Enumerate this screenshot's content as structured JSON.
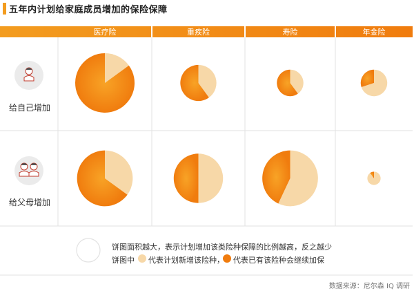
{
  "title": "五年内计划给家庭成员增加的保险保障",
  "colors": {
    "header_gradient_start": "#f39c1f",
    "header_gradient_end": "#f07c0e",
    "existing": "#f07c0e",
    "existing_light": "#f8a326",
    "planned": "#f7d8a8",
    "grid": "#e2e2e2",
    "icon_bg": "#ebebeb"
  },
  "rows": [
    {
      "label": "给自己增加",
      "icon": "single-person-icon"
    },
    {
      "label": "给父母增加",
      "icon": "elderly-couple-icon"
    }
  ],
  "chart_data": {
    "type": "pie",
    "title": "五年内计划给家庭成员增加的保险保障",
    "categories": [
      "医疗险",
      "重疾险",
      "寿险",
      "年金险"
    ],
    "slice_labels": [
      "代表计划新增该险种",
      "代表已有该险种会继续加保"
    ],
    "size_note": "饼图面积越大，表示计划增加该类险种保障的比例越高，反之越少",
    "pies": [
      {
        "row": "给自己增加",
        "category": "医疗险",
        "relative_size": 1.0,
        "planned_share": 0.15,
        "existing_share": 0.85
      },
      {
        "row": "给自己增加",
        "category": "重疾险",
        "relative_size": 0.37,
        "planned_share": 0.4,
        "existing_share": 0.6
      },
      {
        "row": "给自己增加",
        "category": "寿险",
        "relative_size": 0.2,
        "planned_share": 0.4,
        "existing_share": 0.6
      },
      {
        "row": "给自己增加",
        "category": "年金险",
        "relative_size": 0.2,
        "planned_share": 0.7,
        "existing_share": 0.3
      },
      {
        "row": "给父母增加",
        "category": "医疗险",
        "relative_size": 0.88,
        "planned_share": 0.35,
        "existing_share": 0.65
      },
      {
        "row": "给父母增加",
        "category": "重疾险",
        "relative_size": 0.69,
        "planned_share": 0.5,
        "existing_share": 0.5
      },
      {
        "row": "给父母增加",
        "category": "寿险",
        "relative_size": 0.88,
        "planned_share": 0.57,
        "existing_share": 0.43
      },
      {
        "row": "给父母增加",
        "category": "年金险",
        "relative_size": 0.05,
        "planned_share": 0.9,
        "existing_share": 0.1
      }
    ]
  },
  "legend": {
    "line1": "饼图面积越大，表示计划增加该类险种保障的比例越高，反之越少",
    "line2_prefix": "饼图中",
    "planned_label": "代表计划新增该险种，",
    "existing_label": "代表已有该险种会继续加保"
  },
  "source": "数据来源：尼尔森 IQ 调研"
}
